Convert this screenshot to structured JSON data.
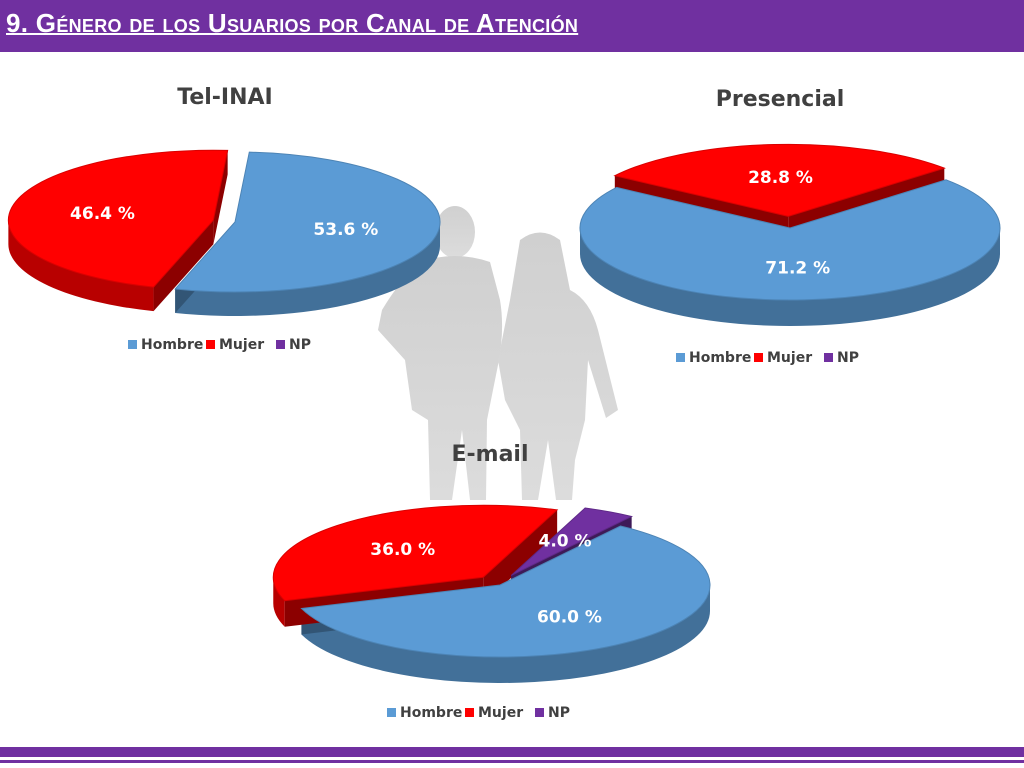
{
  "header": {
    "title": "9. Género de los Usuarios por Canal de Atención"
  },
  "colors": {
    "accent": "#7030a0",
    "hombre": "#5b9bd5",
    "mujer": "#ff0000",
    "np": "#7030a0",
    "silhouette": "#d9d9d9"
  },
  "chart_data": [
    {
      "type": "pie",
      "title": "Tel-INAI",
      "categories": [
        "Hombre",
        "Mujer",
        "NP"
      ],
      "values": [
        53.6,
        46.4,
        0
      ],
      "labels": [
        "53.6 %",
        "46.4  %",
        ""
      ],
      "legend": [
        "Hombre",
        "Mujer",
        "NP"
      ],
      "legend_position": "bottom"
    },
    {
      "type": "pie",
      "title": "Presencial",
      "categories": [
        "Hombre",
        "Mujer",
        "NP"
      ],
      "values": [
        71.2,
        28.8,
        0
      ],
      "labels": [
        "71.2 %",
        "28.8  %",
        ""
      ],
      "legend": [
        "Hombre",
        "Mujer",
        "NP"
      ],
      "legend_position": "bottom"
    },
    {
      "type": "pie",
      "title": "E-mail",
      "categories": [
        "Hombre",
        "Mujer",
        "NP"
      ],
      "values": [
        60.0,
        36.0,
        4.0
      ],
      "labels": [
        "60.0 %",
        "36.0  %",
        "4.0 %"
      ],
      "legend": [
        "Hombre",
        "Mujer",
        "NP"
      ],
      "legend_position": "bottom"
    }
  ]
}
